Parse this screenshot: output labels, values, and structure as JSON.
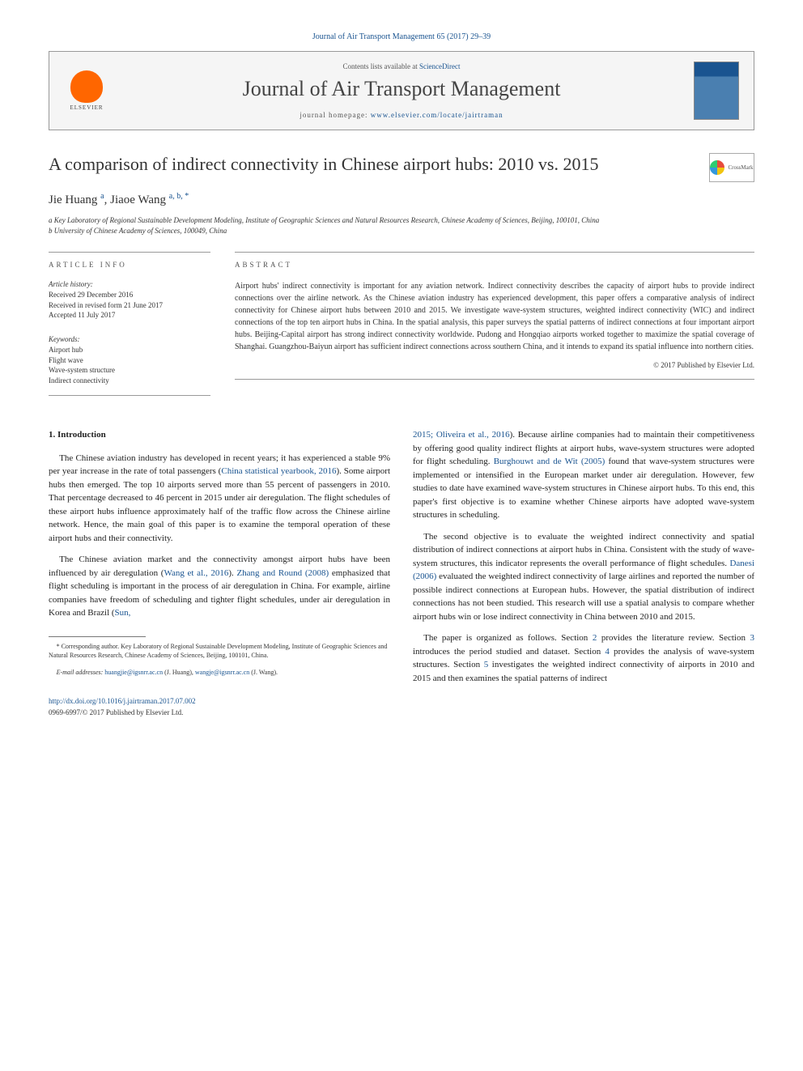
{
  "journal_header_citation": "Journal of Air Transport Management 65 (2017) 29–39",
  "header": {
    "contents_prefix": "Contents lists available at ",
    "contents_link": "ScienceDirect",
    "journal_name": "Journal of Air Transport Management",
    "homepage_prefix": "journal homepage: ",
    "homepage_url": "www.elsevier.com/locate/jairtraman",
    "elsevier_label": "ELSEVIER",
    "cover_label": "AIR TRANSPORT MANAGEMENT"
  },
  "crossmark_label": "CrossMark",
  "title": "A comparison of indirect connectivity in Chinese airport hubs: 2010 vs. 2015",
  "authors": {
    "a1_name": "Jie Huang",
    "a1_sup": "a",
    "sep": ", ",
    "a2_name": "Jiaoe Wang",
    "a2_sup": "a, b, *"
  },
  "affiliations": {
    "a": "a Key Laboratory of Regional Sustainable Development Modeling, Institute of Geographic Sciences and Natural Resources Research, Chinese Academy of Sciences, Beijing, 100101, China",
    "b": "b University of Chinese Academy of Sciences, 100049, China"
  },
  "info": {
    "label": "ARTICLE INFO",
    "history_label": "Article history:",
    "received": "Received 29 December 2016",
    "revised": "Received in revised form 21 June 2017",
    "accepted": "Accepted 11 July 2017",
    "keywords_label": "Keywords:",
    "keywords": [
      "Airport hub",
      "Flight wave",
      "Wave-system structure",
      "Indirect connectivity"
    ]
  },
  "abstract": {
    "label": "ABSTRACT",
    "text": "Airport hubs' indirect connectivity is important for any aviation network. Indirect connectivity describes the capacity of airport hubs to provide indirect connections over the airline network. As the Chinese aviation industry has experienced development, this paper offers a comparative analysis of indirect connectivity for Chinese airport hubs between 2010 and 2015. We investigate wave-system structures, weighted indirect connectivity (WIC) and indirect connections of the top ten airport hubs in China. In the spatial analysis, this paper surveys the spatial patterns of indirect connections at four important airport hubs. Beijing-Capital airport has strong indirect connectivity worldwide. Pudong and Hongqiao airports worked together to maximize the spatial coverage of Shanghai. Guangzhou-Baiyun airport has sufficient indirect connections across southern China, and it intends to expand its spatial influence into northern cities.",
    "copyright": "© 2017 Published by Elsevier Ltd."
  },
  "body": {
    "section_heading": "1. Introduction",
    "col1": {
      "p1_a": "The Chinese aviation industry has developed in recent years; it has experienced a stable 9% per year increase in the rate of total passengers (",
      "p1_link1": "China statistical yearbook, 2016",
      "p1_b": "). Some airport hubs then emerged. The top 10 airports served more than 55 percent of passengers in 2010. That percentage decreased to 46 percent in 2015 under air deregulation. The flight schedules of these airport hubs influence approximately half of the traffic flow across the Chinese airline network. Hence, the main goal of this paper is to examine the temporal operation of these airport hubs and their connectivity.",
      "p2_a": "The Chinese aviation market and the connectivity amongst airport hubs have been influenced by air deregulation (",
      "p2_link1": "Wang et al., 2016",
      "p2_b": "). ",
      "p2_link2": "Zhang and Round (2008)",
      "p2_c": " emphasized that flight scheduling is important in the process of air deregulation in China. For example, airline companies have freedom of scheduling and tighter flight schedules, under air deregulation in Korea and Brazil (",
      "p2_link3": "Sun,"
    },
    "col2": {
      "p1_link1": "2015; Oliveira et al., 2016",
      "p1_a": "). Because airline companies had to maintain their competitiveness by offering good quality indirect flights at airport hubs, wave-system structures were adopted for flight scheduling. ",
      "p1_link2": "Burghouwt and de Wit (2005)",
      "p1_b": " found that wave-system structures were implemented or intensified in the European market under air deregulation. However, few studies to date have examined wave-system structures in Chinese airport hubs. To this end, this paper's first objective is to examine whether Chinese airports have adopted wave-system structures in scheduling.",
      "p2_a": "The second objective is to evaluate the weighted indirect connectivity and spatial distribution of indirect connections at airport hubs in China. Consistent with the study of wave-system structures, this indicator represents the overall performance of flight schedules. ",
      "p2_link1": "Danesi (2006)",
      "p2_b": " evaluated the weighted indirect connectivity of large airlines and reported the number of possible indirect connections at European hubs. However, the spatial distribution of indirect connections has not been studied. This research will use a spatial analysis to compare whether airport hubs win or lose indirect connectivity in China between 2010 and 2015.",
      "p3_a": "The paper is organized as follows. Section ",
      "p3_link1": "2",
      "p3_b": " provides the literature review. Section ",
      "p3_link2": "3",
      "p3_c": " introduces the period studied and dataset. Section ",
      "p3_link3": "4",
      "p3_d": " provides the analysis of wave-system structures. Section ",
      "p3_link4": "5",
      "p3_e": " investigates the weighted indirect connectivity of airports in 2010 and 2015 and then examines the spatial patterns of indirect"
    }
  },
  "footnote": {
    "corr": "* Corresponding author. Key Laboratory of Regional Sustainable Development Modeling, Institute of Geographic Sciences and Natural Resources Research, Chinese Academy of Sciences, Beijing, 100101, China.",
    "email_label": "E-mail addresses: ",
    "email1": "huangjie@igsnrr.ac.cn",
    "email1_name": " (J. Huang), ",
    "email2": "wangje@igsnrr.ac.cn",
    "email2_name": " (J. Wang)."
  },
  "doi": {
    "url": "http://dx.doi.org/10.1016/j.jairtraman.2017.07.002",
    "issn": "0969-6997/© 2017 Published by Elsevier Ltd."
  },
  "colors": {
    "link": "#1a5490",
    "elsevier_orange": "#ff6600",
    "text": "#333333",
    "rule": "#999999",
    "background": "#ffffff"
  },
  "typography": {
    "title_fontsize": 22,
    "journal_name_fontsize": 26,
    "body_fontsize": 11,
    "abstract_fontsize": 10,
    "small_fontsize": 9,
    "footnote_fontsize": 8
  }
}
